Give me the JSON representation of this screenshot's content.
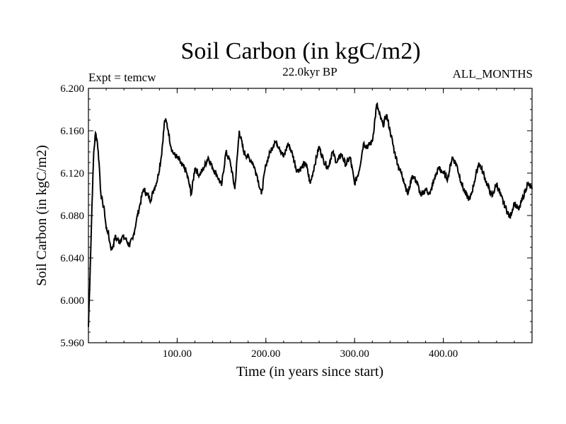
{
  "chart_data": {
    "type": "line",
    "title": "Soil Carbon (in kgC/m2)",
    "subtitle_left": "Expt = temcw",
    "subtitle_center": "22.0kyr BP",
    "subtitle_right": "ALL_MONTHS",
    "xlabel": "Time (in years since start)",
    "ylabel": "Soil Carbon (in kgC/m2)",
    "xlim": [
      0,
      500
    ],
    "ylim": [
      5.96,
      6.2
    ],
    "xticks": [
      100,
      200,
      300,
      400
    ],
    "xtick_labels": [
      "100.00",
      "200.00",
      "300.00",
      "400.00"
    ],
    "yticks": [
      5.96,
      6.0,
      6.04,
      6.08,
      6.12,
      6.16,
      6.2
    ],
    "ytick_labels": [
      "5.960",
      "6.000",
      "6.040",
      "6.080",
      "6.120",
      "6.160",
      "6.200"
    ],
    "series": [
      {
        "name": "Soil Carbon",
        "x": [
          0,
          2,
          4,
          6,
          8,
          10,
          12,
          14,
          16,
          18,
          20,
          22,
          24,
          26,
          28,
          30,
          32,
          35,
          38,
          42,
          46,
          50,
          54,
          58,
          62,
          66,
          70,
          74,
          78,
          82,
          86,
          88,
          90,
          93,
          96,
          100,
          105,
          110,
          113,
          116,
          120,
          125,
          130,
          135,
          140,
          145,
          150,
          155,
          160,
          165,
          170,
          175,
          180,
          185,
          190,
          195,
          200,
          205,
          210,
          215,
          220,
          225,
          230,
          235,
          240,
          245,
          250,
          255,
          260,
          265,
          270,
          275,
          280,
          285,
          290,
          295,
          300,
          305,
          310,
          315,
          320,
          325,
          328,
          332,
          336,
          340,
          345,
          350,
          355,
          360,
          365,
          370,
          375,
          380,
          385,
          390,
          395,
          400,
          405,
          410,
          415,
          420,
          425,
          430,
          435,
          440,
          445,
          450,
          455,
          460,
          465,
          470,
          475,
          480,
          485,
          490,
          495,
          500
        ],
        "values": [
          5.975,
          6.03,
          6.09,
          6.14,
          6.158,
          6.15,
          6.13,
          6.1,
          6.092,
          6.085,
          6.068,
          6.065,
          6.055,
          6.048,
          6.052,
          6.06,
          6.058,
          6.055,
          6.06,
          6.058,
          6.052,
          6.058,
          6.075,
          6.09,
          6.105,
          6.1,
          6.095,
          6.105,
          6.115,
          6.135,
          6.17,
          6.168,
          6.16,
          6.145,
          6.138,
          6.135,
          6.128,
          6.122,
          6.112,
          6.1,
          6.125,
          6.118,
          6.125,
          6.135,
          6.125,
          6.118,
          6.108,
          6.14,
          6.13,
          6.105,
          6.16,
          6.14,
          6.135,
          6.13,
          6.118,
          6.1,
          6.128,
          6.14,
          6.15,
          6.145,
          6.135,
          6.148,
          6.138,
          6.122,
          6.125,
          6.13,
          6.11,
          6.128,
          6.145,
          6.132,
          6.125,
          6.14,
          6.13,
          6.138,
          6.128,
          6.135,
          6.11,
          6.122,
          6.148,
          6.145,
          6.15,
          6.185,
          6.175,
          6.165,
          6.175,
          6.16,
          6.14,
          6.125,
          6.115,
          6.1,
          6.118,
          6.112,
          6.098,
          6.105,
          6.1,
          6.115,
          6.125,
          6.12,
          6.115,
          6.135,
          6.128,
          6.112,
          6.1,
          6.095,
          6.112,
          6.13,
          6.12,
          6.108,
          6.098,
          6.11,
          6.098,
          6.088,
          6.078,
          6.092,
          6.085,
          6.098,
          6.11,
          6.105
        ]
      }
    ]
  }
}
